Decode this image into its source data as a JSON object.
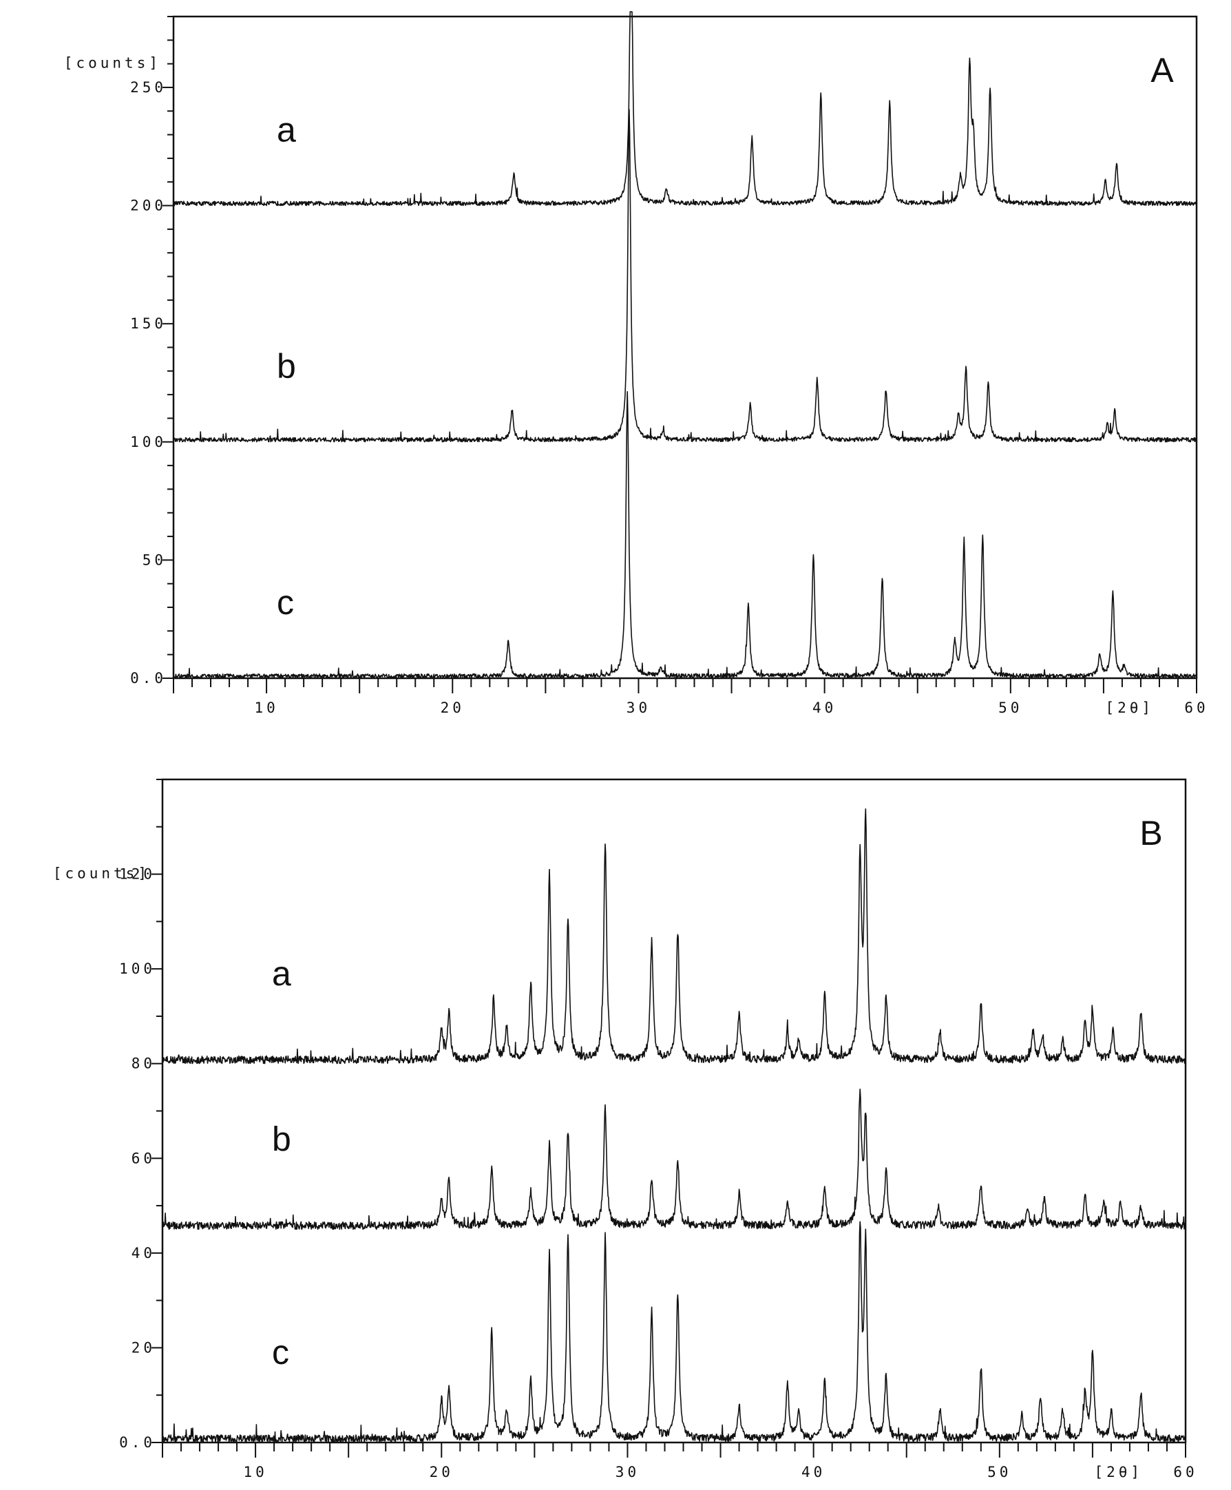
{
  "chart_data": [
    {
      "type": "line",
      "panel_label": "A",
      "ylabel": "[counts]",
      "xlabel": "[2θ]",
      "xlim": [
        5,
        60
      ],
      "ylim": [
        0,
        280
      ],
      "x_ticks": [
        10,
        20,
        30,
        40,
        50,
        60
      ],
      "x_tick_labels": [
        "10",
        "20",
        "30",
        "40",
        "50",
        "60"
      ],
      "y_ticks": [
        0,
        50,
        100,
        150,
        200,
        250
      ],
      "y_tick_labels": [
        "0.0",
        "50",
        "100",
        "150",
        "200",
        "250"
      ],
      "grid": false,
      "series": [
        {
          "name": "a",
          "baseline": 200,
          "peaks": [
            [
              23.3,
              13
            ],
            [
              29.6,
              120
            ],
            [
              31.5,
              6
            ],
            [
              36.1,
              28
            ],
            [
              39.8,
              46
            ],
            [
              43.5,
              43
            ],
            [
              47.3,
              10
            ],
            [
              47.8,
              57
            ],
            [
              48.0,
              24
            ],
            [
              48.9,
              48
            ],
            [
              55.1,
              9
            ],
            [
              55.7,
              17
            ]
          ]
        },
        {
          "name": "b",
          "baseline": 100,
          "peaks": [
            [
              23.2,
              13
            ],
            [
              29.5,
              140
            ],
            [
              31.3,
              3
            ],
            [
              36.0,
              15
            ],
            [
              39.6,
              26
            ],
            [
              43.3,
              21
            ],
            [
              47.2,
              10
            ],
            [
              47.6,
              30
            ],
            [
              48.8,
              24
            ],
            [
              55.2,
              6
            ],
            [
              55.6,
              12
            ]
          ]
        },
        {
          "name": "c",
          "baseline": 0,
          "peaks": [
            [
              23.0,
              15
            ],
            [
              29.4,
              120
            ],
            [
              31.2,
              4
            ],
            [
              35.9,
              30
            ],
            [
              39.4,
              52
            ],
            [
              43.1,
              42
            ],
            [
              47.0,
              14
            ],
            [
              47.5,
              56
            ],
            [
              48.5,
              59
            ],
            [
              54.8,
              9
            ],
            [
              55.5,
              35
            ],
            [
              56.1,
              4
            ]
          ]
        }
      ]
    },
    {
      "type": "line",
      "panel_label": "B",
      "ylabel": "[counts]",
      "xlabel": "[2θ]",
      "xlim": [
        5,
        60
      ],
      "ylim": [
        0,
        140
      ],
      "x_ticks": [
        10,
        20,
        30,
        40,
        50,
        60
      ],
      "x_tick_labels": [
        "10",
        "20",
        "30",
        "40",
        "50",
        "60"
      ],
      "y_ticks": [
        0,
        20,
        40,
        60,
        80,
        100,
        120
      ],
      "y_tick_labels": [
        "0.0",
        "20",
        "40",
        "60",
        "80",
        "100",
        "120"
      ],
      "grid": false,
      "series": [
        {
          "name": "a",
          "baseline": 80,
          "peaks": [
            [
              20.0,
              6
            ],
            [
              20.4,
              10
            ],
            [
              22.8,
              13
            ],
            [
              23.5,
              7
            ],
            [
              24.8,
              16
            ],
            [
              25.8,
              39
            ],
            [
              26.8,
              29
            ],
            [
              28.8,
              46
            ],
            [
              31.3,
              25
            ],
            [
              32.7,
              27
            ],
            [
              36.0,
              10
            ],
            [
              38.6,
              6
            ],
            [
              39.2,
              4
            ],
            [
              40.6,
              14
            ],
            [
              42.5,
              41
            ],
            [
              42.8,
              50
            ],
            [
              43.9,
              13
            ],
            [
              46.8,
              6
            ],
            [
              49.0,
              12
            ],
            [
              51.8,
              6
            ],
            [
              52.3,
              5
            ],
            [
              53.4,
              4
            ],
            [
              54.6,
              8
            ],
            [
              55.0,
              10
            ],
            [
              56.1,
              6
            ],
            [
              57.6,
              10
            ]
          ]
        },
        {
          "name": "b",
          "baseline": 45,
          "peaks": [
            [
              20.0,
              5
            ],
            [
              20.4,
              10
            ],
            [
              22.7,
              12
            ],
            [
              24.8,
              7
            ],
            [
              25.8,
              17
            ],
            [
              26.8,
              20
            ],
            [
              28.8,
              25
            ],
            [
              31.3,
              10
            ],
            [
              32.7,
              14
            ],
            [
              36.0,
              7
            ],
            [
              38.6,
              5
            ],
            [
              40.6,
              8
            ],
            [
              42.5,
              27
            ],
            [
              42.8,
              22
            ],
            [
              43.9,
              12
            ],
            [
              46.7,
              4
            ],
            [
              49.0,
              9
            ],
            [
              51.5,
              4
            ],
            [
              52.4,
              6
            ],
            [
              54.6,
              6
            ],
            [
              55.6,
              5
            ],
            [
              56.5,
              5
            ],
            [
              57.6,
              4
            ]
          ]
        },
        {
          "name": "c",
          "baseline": 0,
          "peaks": [
            [
              20.0,
              8
            ],
            [
              20.4,
              11
            ],
            [
              22.7,
              23
            ],
            [
              23.5,
              6
            ],
            [
              24.8,
              12
            ],
            [
              25.8,
              39
            ],
            [
              26.8,
              43
            ],
            [
              28.8,
              43
            ],
            [
              31.3,
              27
            ],
            [
              32.7,
              31
            ],
            [
              36.0,
              7
            ],
            [
              38.6,
              12
            ],
            [
              39.2,
              6
            ],
            [
              40.6,
              12
            ],
            [
              42.5,
              43
            ],
            [
              42.8,
              40
            ],
            [
              43.9,
              13
            ],
            [
              46.8,
              6
            ],
            [
              49.0,
              15
            ],
            [
              51.2,
              5
            ],
            [
              52.2,
              9
            ],
            [
              53.4,
              6
            ],
            [
              54.6,
              10
            ],
            [
              55.0,
              18
            ],
            [
              56.0,
              6
            ],
            [
              57.6,
              10
            ]
          ]
        }
      ]
    }
  ]
}
